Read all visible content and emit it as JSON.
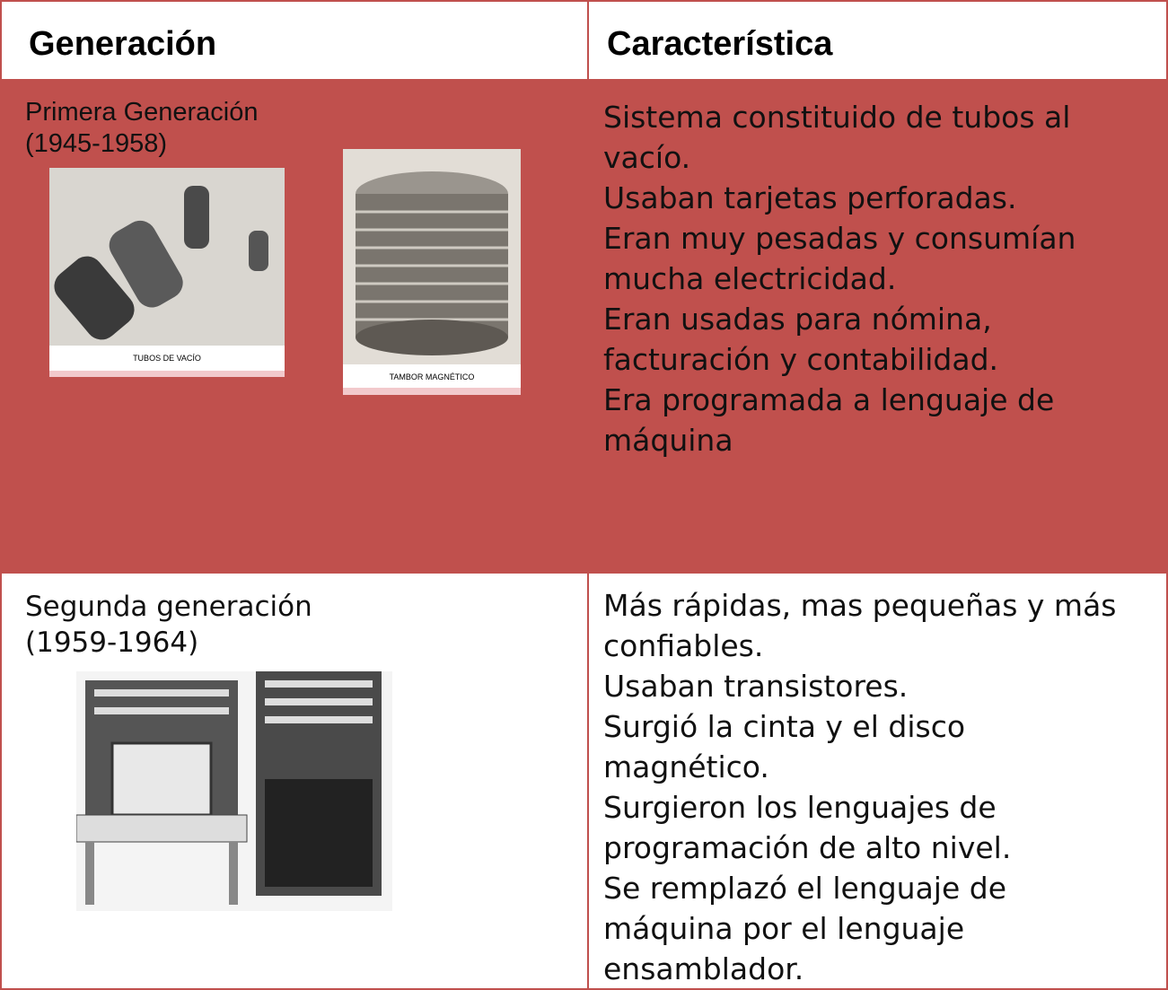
{
  "table": {
    "header": [
      "Generación",
      "Característica"
    ],
    "rows": [
      {
        "generation": [
          "Primera Generación",
          "(1945-1958)"
        ],
        "images": [
          "TUBOS DE VACÍO",
          "TAMBOR MAGNÉTICO"
        ],
        "characteristics": [
          "Sistema constituido de tubos al",
          "vacío.",
          "Usaban tarjetas perforadas.",
          "Eran muy pesadas y consumían",
          "mucha electricidad.",
          "Eran usadas para nómina,",
          "facturación y contabilidad.",
          "Era programada a lenguaje de",
          "máquina"
        ]
      },
      {
        "generation": [
          "Segunda generación",
          "(1959-1964)"
        ],
        "characteristics": [
          "Más rápidas, mas pequeñas y más",
          "confiables.",
          "Usaban transistores.",
          "Surgió la cinta y el disco",
          "magnético.",
          "Surgieron los lenguajes de",
          "programación de alto nivel.",
          "Se remplazó el lenguaje de",
          "máquina por el lenguaje",
          "ensamblador."
        ]
      }
    ]
  }
}
